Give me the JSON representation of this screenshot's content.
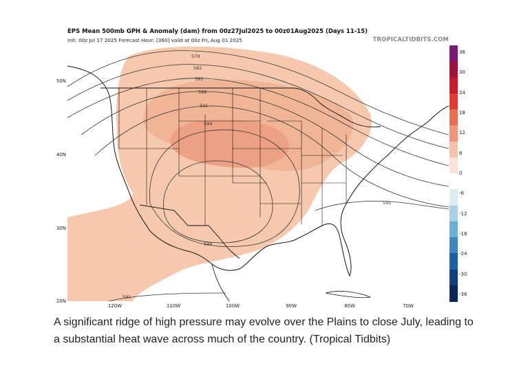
{
  "header": {
    "title": "EPS Mean 500mb GPH & Anomaly (dam) from 00z27Jul2025 to 00z01Aug2025 (Days 11-15)",
    "init_line": "Init: 00z Jul 17 2025   Forecast Hour: [360]   valid at 00z Fri, Aug 01 2025",
    "source": "TROPICALTIDBITS.COM"
  },
  "map": {
    "latitude_labels": [
      "50N",
      "40N",
      "30N",
      "20N"
    ],
    "longitude_labels": [
      "120W",
      "110W",
      "100W",
      "90W",
      "80W",
      "70W"
    ],
    "contour_labels": [
      "579",
      "582",
      "585",
      "588",
      "591",
      "594",
      "594",
      "591",
      "591"
    ],
    "anomaly_fill_colors": {
      "light": "#f6c9ae",
      "medium": "#f0b596",
      "strong": "#eda184"
    },
    "contour_color": "#333333",
    "border_color": "#111111"
  },
  "colorbar": {
    "ticks": [
      "36",
      "30",
      "24",
      "18",
      "12",
      "6",
      "0",
      "-6",
      "-12",
      "-18",
      "-24",
      "-30",
      "-36"
    ],
    "colors": [
      "#7b1a74",
      "#a1123b",
      "#c61b2b",
      "#de3b36",
      "#ec6b54",
      "#f2937b",
      "#f6c2ac",
      "#fbe3d8",
      "#ffffff",
      "#dcecf5",
      "#a9d0e6",
      "#6caed4",
      "#3c86bf",
      "#1d5fa3",
      "#113f80",
      "#0b2659"
    ]
  },
  "caption": {
    "text": "A significant ridge of high pressure may evolve over the Plains to close July, leading to a substantial heat wave across much of the country. (Tropical Tidbits)"
  }
}
